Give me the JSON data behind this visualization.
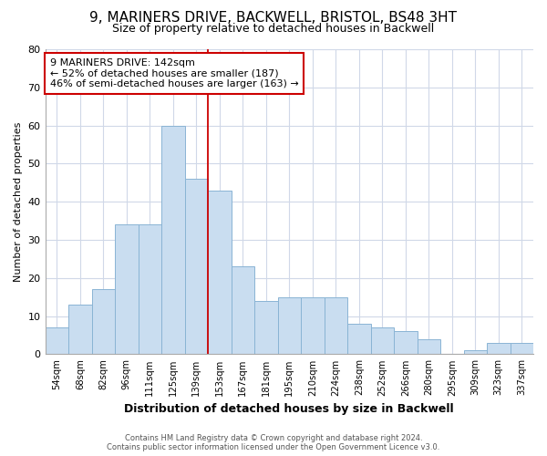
{
  "title_line1": "9, MARINERS DRIVE, BACKWELL, BRISTOL, BS48 3HT",
  "title_line2": "Size of property relative to detached houses in Backwell",
  "xlabel": "Distribution of detached houses by size in Backwell",
  "ylabel": "Number of detached properties",
  "categories": [
    "54sqm",
    "68sqm",
    "82sqm",
    "96sqm",
    "111sqm",
    "125sqm",
    "139sqm",
    "153sqm",
    "167sqm",
    "181sqm",
    "195sqm",
    "210sqm",
    "224sqm",
    "238sqm",
    "252sqm",
    "266sqm",
    "280sqm",
    "295sqm",
    "309sqm",
    "323sqm",
    "337sqm"
  ],
  "values": [
    7,
    13,
    17,
    34,
    34,
    60,
    46,
    43,
    23,
    14,
    15,
    15,
    15,
    8,
    7,
    6,
    4,
    0,
    1,
    3,
    3
  ],
  "bar_color": "#c9ddf0",
  "bar_edgecolor": "#8ab4d4",
  "vline_x_index": 6,
  "vline_color": "#cc0000",
  "annotation_text": "9 MARINERS DRIVE: 142sqm\n← 52% of detached houses are smaller (187)\n46% of semi-detached houses are larger (163) →",
  "annotation_box_edgecolor": "#cc0000",
  "annotation_fontsize": 8,
  "ylim": [
    0,
    80
  ],
  "yticks": [
    0,
    10,
    20,
    30,
    40,
    50,
    60,
    70,
    80
  ],
  "footer_line1": "Contains HM Land Registry data © Crown copyright and database right 2024.",
  "footer_line2": "Contains public sector information licensed under the Open Government Licence v3.0.",
  "bg_color": "#ffffff",
  "grid_color": "#d0d8e8",
  "title1_fontsize": 11,
  "title2_fontsize": 9
}
